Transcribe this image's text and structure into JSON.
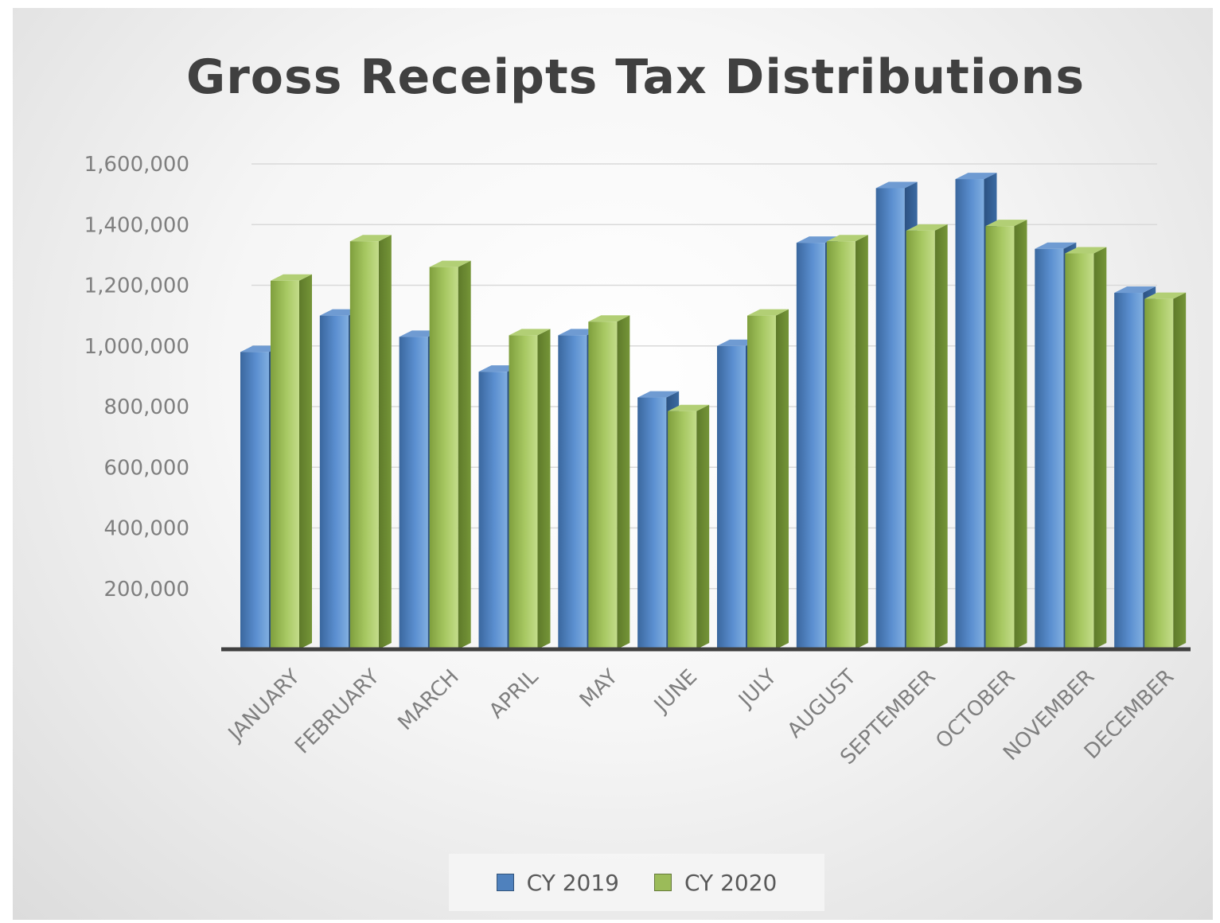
{
  "chart_data": {
    "type": "bar",
    "title": "Gross Receipts Tax Distributions",
    "categories": [
      "JANUARY",
      "FEBRUARY",
      "MARCH",
      "APRIL",
      "MAY",
      "JUNE",
      "JULY",
      "AUGUST",
      "SEPTEMBER",
      "OCTOBER",
      "NOVEMBER",
      "DECEMBER"
    ],
    "series": [
      {
        "name": "CY 2019",
        "values": [
          980000,
          1100000,
          1030000,
          915000,
          1035000,
          830000,
          1000000,
          1340000,
          1520000,
          1550000,
          1320000,
          1175000
        ],
        "color": "#4f81bd"
      },
      {
        "name": "CY 2020",
        "values": [
          1215000,
          1345000,
          1260000,
          1035000,
          1080000,
          785000,
          1100000,
          1345000,
          1380000,
          1395000,
          1305000,
          1155000
        ],
        "color": "#9bbb59"
      }
    ],
    "ylim": [
      0,
      1600000
    ],
    "yticks": [
      200000,
      400000,
      600000,
      800000,
      1000000,
      1200000,
      1400000,
      1600000
    ],
    "ytick_labels": [
      "200,000",
      "400,000",
      "600,000",
      "800,000",
      "1,000,000",
      "1,200,000",
      "1,400,000",
      "1,600,000"
    ],
    "grid": true,
    "legend_position": "bottom"
  }
}
